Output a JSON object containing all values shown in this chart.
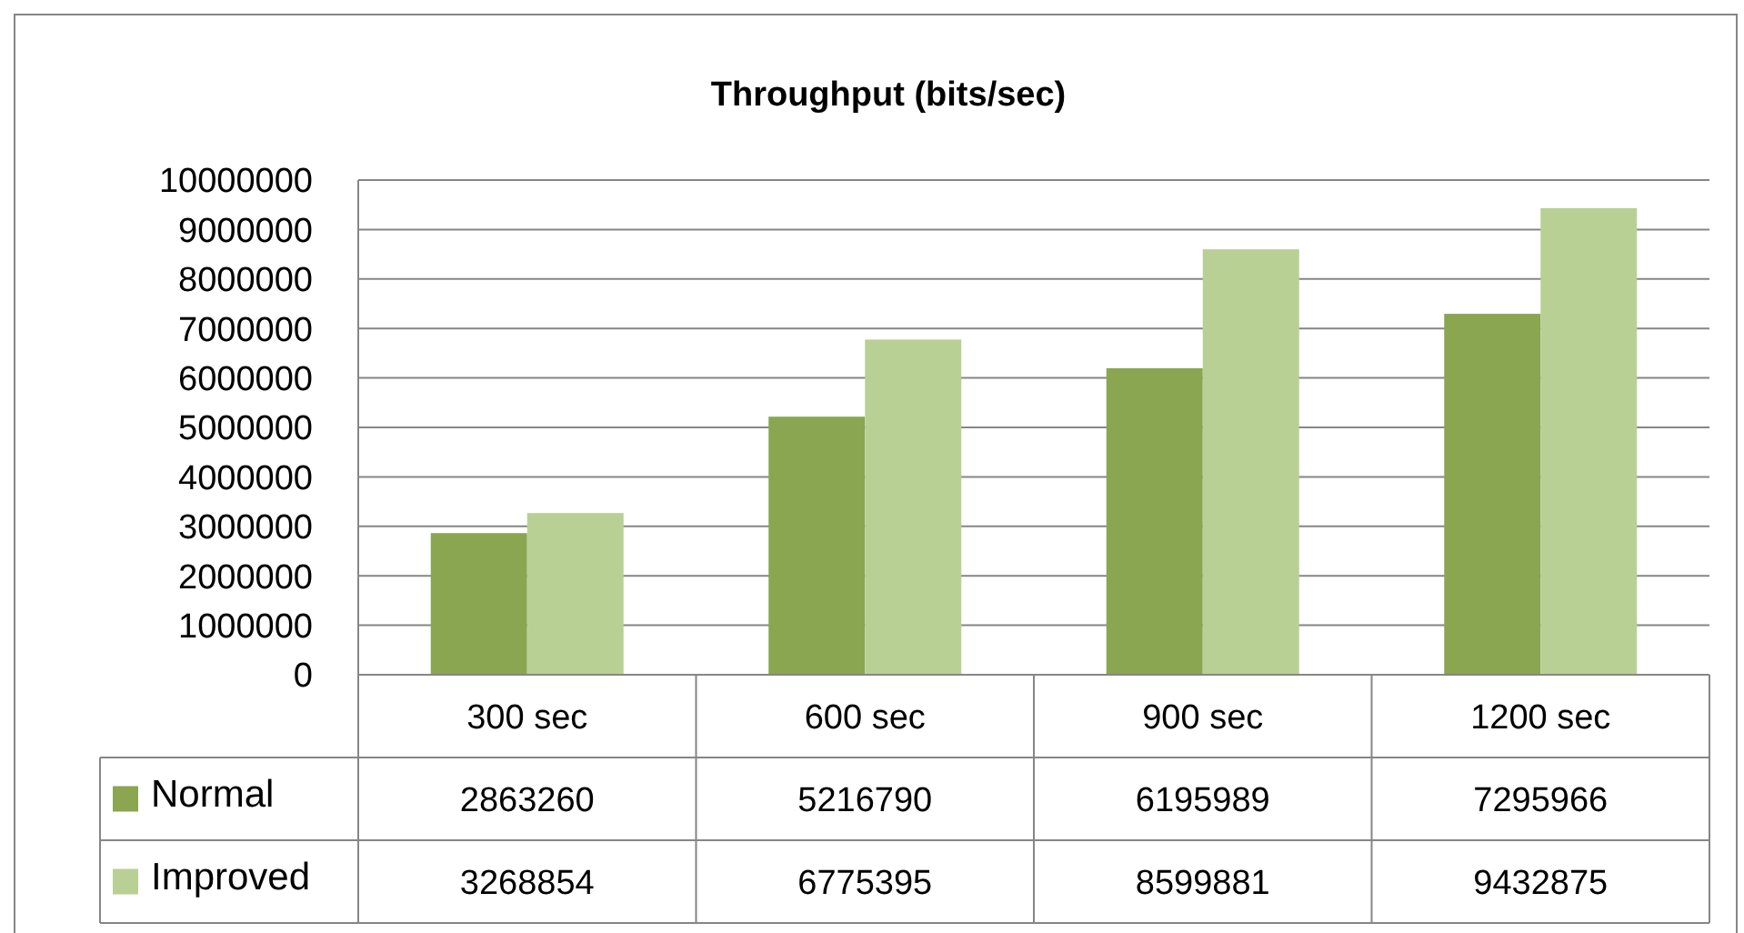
{
  "chart_data": {
    "type": "bar",
    "title": "Throughput (bits/sec)",
    "categories": [
      "300 sec",
      "600 sec",
      "900 sec",
      "1200 sec"
    ],
    "series": [
      {
        "name": "Normal",
        "color": "#8aa651",
        "values": [
          2863260,
          5216790,
          6195989,
          7295966
        ]
      },
      {
        "name": "Improved",
        "color": "#b9d095",
        "values": [
          3268854,
          6775395,
          8599881,
          9432875
        ]
      }
    ],
    "ylim": [
      0,
      10000000
    ],
    "yticks": [
      0,
      1000000,
      2000000,
      3000000,
      4000000,
      5000000,
      6000000,
      7000000,
      8000000,
      9000000,
      10000000
    ],
    "grid": "y",
    "data_labels": true,
    "legend": "bottom left"
  }
}
